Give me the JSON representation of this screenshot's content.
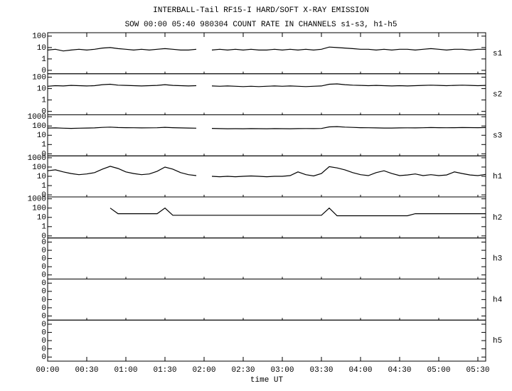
{
  "chart_data": {
    "type": "line",
    "title": "INTERBALL-Tail RF15-I HARD/SOFT X-RAY EMISSION",
    "subtitle": "SOW 00:00 05:40 980304  COUNT RATE IN CHANNELS s1-s3, h1-h5",
    "xlabel": "time UT",
    "color": "#000000",
    "xlim": [
      0,
      336
    ],
    "xticks": [
      {
        "value": 0,
        "label": "00:00"
      },
      {
        "value": 30,
        "label": "00:30"
      },
      {
        "value": 60,
        "label": "01:00"
      },
      {
        "value": 90,
        "label": "01:30"
      },
      {
        "value": 120,
        "label": "02:00"
      },
      {
        "value": 150,
        "label": "02:30"
      },
      {
        "value": 180,
        "label": "03:00"
      },
      {
        "value": 210,
        "label": "03:30"
      },
      {
        "value": 240,
        "label": "04:00"
      },
      {
        "value": 270,
        "label": "04:30"
      },
      {
        "value": 300,
        "label": "05:00"
      },
      {
        "value": 330,
        "label": "05:30"
      }
    ],
    "x": [
      0,
      6,
      12,
      18,
      24,
      30,
      36,
      42,
      48,
      54,
      60,
      66,
      72,
      78,
      84,
      90,
      96,
      102,
      108,
      114,
      120,
      126,
      132,
      138,
      144,
      150,
      156,
      162,
      168,
      174,
      180,
      186,
      192,
      198,
      204,
      210,
      216,
      222,
      228,
      234,
      240,
      246,
      252,
      258,
      264,
      270,
      276,
      282,
      288,
      294,
      300,
      306,
      312,
      318,
      324,
      330,
      336
    ],
    "panels": [
      {
        "name": "s1",
        "yscale": "log",
        "ylim": [
          0.05,
          200
        ],
        "yticks": [
          {
            "value": 0.1,
            "label": "0"
          },
          1,
          10,
          100
        ],
        "values": [
          6,
          7,
          5,
          6,
          7,
          6,
          7,
          9,
          10,
          8,
          7,
          6,
          7,
          6,
          7,
          8,
          7,
          6,
          6,
          7,
          null,
          6,
          7,
          6,
          7,
          6,
          7,
          6,
          6,
          7,
          6,
          7,
          6,
          7,
          6,
          7,
          11,
          10,
          9,
          8,
          7,
          7,
          6,
          7,
          6,
          7,
          7,
          6,
          7,
          8,
          7,
          6,
          7,
          7,
          6,
          7,
          7
        ]
      },
      {
        "name": "s2",
        "yscale": "log",
        "ylim": [
          0.05,
          200
        ],
        "yticks": [
          {
            "value": 0.1,
            "label": "0"
          },
          1,
          10,
          100
        ],
        "values": [
          16,
          18,
          17,
          19,
          18,
          17,
          18,
          22,
          24,
          20,
          19,
          18,
          17,
          18,
          19,
          22,
          19,
          18,
          17,
          18,
          null,
          17,
          16,
          17,
          16,
          15,
          16,
          15,
          16,
          17,
          16,
          17,
          16,
          15,
          16,
          17,
          24,
          26,
          22,
          20,
          19,
          18,
          19,
          18,
          17,
          18,
          17,
          18,
          19,
          20,
          19,
          18,
          19,
          20,
          19,
          18,
          19
        ]
      },
      {
        "name": "s3",
        "yscale": "log",
        "ylim": [
          0.06,
          1600
        ],
        "yticks": [
          {
            "value": 0.1,
            "label": "0"
          },
          1,
          10,
          100,
          1000
        ],
        "values": [
          60,
          62,
          58,
          55,
          58,
          60,
          62,
          70,
          75,
          68,
          66,
          64,
          62,
          63,
          65,
          72,
          66,
          62,
          60,
          58,
          null,
          55,
          52,
          50,
          51,
          50,
          52,
          51,
          50,
          52,
          51,
          50,
          52,
          53,
          52,
          54,
          80,
          85,
          76,
          70,
          66,
          64,
          62,
          60,
          60,
          62,
          63,
          62,
          65,
          68,
          66,
          65,
          66,
          68,
          67,
          66,
          68
        ]
      },
      {
        "name": "h1",
        "yscale": "log",
        "ylim": [
          0.06,
          1600
        ],
        "yticks": [
          {
            "value": 0.1,
            "label": "0"
          },
          1,
          10,
          100,
          1000
        ],
        "values": [
          40,
          50,
          30,
          20,
          15,
          18,
          25,
          60,
          120,
          70,
          30,
          20,
          15,
          18,
          35,
          100,
          60,
          25,
          15,
          12,
          null,
          10,
          9,
          10,
          9,
          10,
          11,
          10,
          9,
          10,
          10,
          12,
          30,
          15,
          11,
          20,
          110,
          80,
          50,
          25,
          15,
          12,
          25,
          40,
          20,
          12,
          14,
          18,
          12,
          15,
          12,
          14,
          30,
          20,
          14,
          12,
          16
        ]
      },
      {
        "name": "h2",
        "yscale": "log",
        "ylim": [
          0.06,
          1600
        ],
        "yticks": [
          {
            "value": 0.1,
            "label": "0"
          },
          1,
          10,
          100,
          1000
        ],
        "values": [
          null,
          null,
          null,
          null,
          null,
          null,
          null,
          null,
          100,
          25,
          25,
          25,
          25,
          25,
          25,
          100,
          17,
          17,
          17,
          17,
          17,
          17,
          17,
          17,
          17,
          17,
          17,
          17,
          17,
          17,
          17,
          17,
          17,
          17,
          17,
          17,
          100,
          15,
          15,
          15,
          15,
          15,
          15,
          15,
          15,
          15,
          15,
          25,
          25,
          25,
          25,
          25,
          25,
          25,
          25,
          25,
          25
        ]
      },
      {
        "name": "h3",
        "yscale": "linear",
        "ylim": [
          -0.05,
          0.45
        ],
        "yticks": [
          {
            "value": 0,
            "label": "0"
          },
          {
            "value": 0.1,
            "label": "0"
          },
          {
            "value": 0.2,
            "label": "0"
          },
          {
            "value": 0.3,
            "label": "0"
          },
          {
            "value": 0.4,
            "label": "0"
          }
        ]
      },
      {
        "name": "h4",
        "yscale": "linear",
        "ylim": [
          -0.05,
          0.45
        ],
        "yticks": [
          {
            "value": 0,
            "label": "0"
          },
          {
            "value": 0.1,
            "label": "0"
          },
          {
            "value": 0.2,
            "label": "0"
          },
          {
            "value": 0.3,
            "label": "0"
          },
          {
            "value": 0.4,
            "label": "0"
          }
        ]
      },
      {
        "name": "h5",
        "yscale": "linear",
        "ylim": [
          -0.05,
          0.45
        ],
        "yticks": [
          {
            "value": 0,
            "label": "0"
          },
          {
            "value": 0.1,
            "label": "0"
          },
          {
            "value": 0.2,
            "label": "0"
          },
          {
            "value": 0.3,
            "label": "0"
          },
          {
            "value": 0.4,
            "label": "0"
          }
        ]
      }
    ]
  }
}
